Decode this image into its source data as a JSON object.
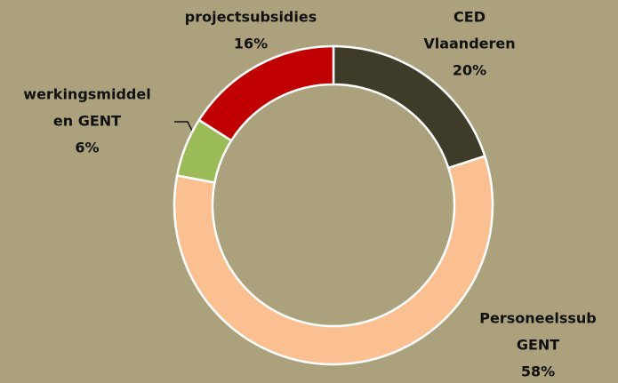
{
  "chart_data": {
    "type": "donut",
    "categories": [
      [
        "CED",
        "Vlaanderen"
      ],
      [
        "Personeelssub",
        "GENT"
      ],
      [
        "werkingsmiddel",
        "en GENT"
      ],
      [
        "projectsubsidies"
      ]
    ],
    "values": [
      20,
      58,
      6,
      16
    ],
    "value_labels": [
      "20%",
      "58%",
      "6%",
      "16%"
    ],
    "colors": [
      "#3f3b29",
      "#fac091",
      "#9bbb59",
      "#c00000"
    ]
  }
}
